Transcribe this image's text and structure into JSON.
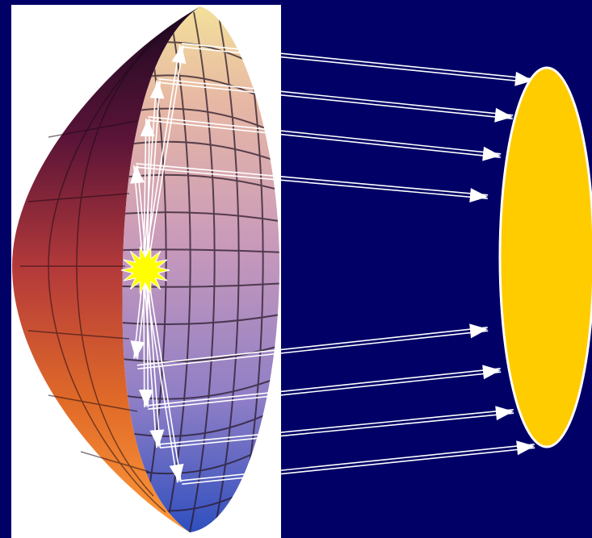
{
  "diagram": {
    "kind": "parabolic-reflector",
    "components": [
      "reflector-dish",
      "light-source",
      "target-ellipse"
    ],
    "reflected_ray_count": 8,
    "colors": {
      "background": "#000066",
      "panel": "#ffffff",
      "target": "#ffcc00",
      "source": "#ffff00",
      "rays": "#ffffff",
      "grid": "#2a1a2a"
    }
  }
}
